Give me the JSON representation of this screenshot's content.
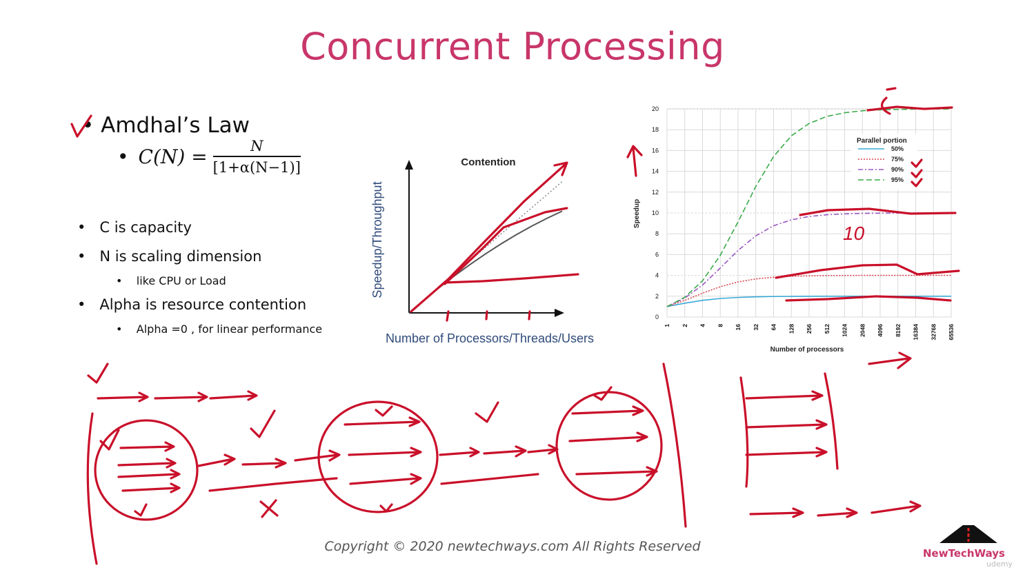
{
  "slide": {
    "title": "Concurrent Processing",
    "bullet_main": "Amdhal’s Law",
    "formula": {
      "lhs": "C(N) =",
      "numerator": "N",
      "denominator": "[1+α(N−1)]"
    },
    "list": [
      {
        "level": 1,
        "text": "C is capacity"
      },
      {
        "level": 1,
        "text": "N is scaling dimension"
      },
      {
        "level": 2,
        "text": "like CPU or Load"
      },
      {
        "level": 1,
        "text": "Alpha is resource contention"
      },
      {
        "level": 2,
        "text": "Alpha =0 , for linear performance"
      }
    ],
    "footer": "Copyright © 2020 newtechways.com All Rights Reserved",
    "logo_text": "NewTechWays",
    "platform": "udemy",
    "handwritten": {
      "ten": "10"
    }
  },
  "colors": {
    "title": "#c8366a",
    "ink": "#c9102a",
    "axis_label": "#2f4a7a"
  },
  "chart_data": [
    {
      "type": "line",
      "title": "Contention",
      "xlabel": "Number of Processors/Threads/Users",
      "ylabel": "Speedup/Throughput",
      "series": [],
      "x": [
        0,
        1,
        2,
        3,
        4,
        5,
        6,
        7,
        8,
        9,
        10
      ],
      "curves": {
        "linear": [
          0,
          1,
          2,
          3,
          4,
          5,
          6,
          7,
          8,
          9,
          10
        ],
        "contention": [
          0,
          1,
          1.95,
          2.85,
          3.7,
          4.5,
          5.25,
          5.95,
          6.6,
          7.2,
          7.75
        ]
      }
    },
    {
      "type": "line",
      "xlabel": "Number of processors",
      "ylabel": "Speedup",
      "legend_title": "Parallel portion",
      "legend_position": "top-right",
      "x_scale": "log2",
      "categories": [
        "1",
        "2",
        "4",
        "8",
        "16",
        "32",
        "64",
        "128",
        "256",
        "512",
        "1024",
        "2048",
        "4096",
        "8192",
        "16384",
        "32768",
        "65536"
      ],
      "ylim": [
        0,
        20
      ],
      "yticks": [
        0,
        2,
        4,
        6,
        8,
        10,
        12,
        14,
        16,
        18,
        20
      ],
      "grid": true,
      "series": [
        {
          "name": "50%",
          "color": "#38a8d6",
          "dash": "solid",
          "values": [
            1,
            1.33,
            1.6,
            1.78,
            1.88,
            1.94,
            1.97,
            1.98,
            1.99,
            2,
            2,
            2,
            2,
            2,
            2,
            2,
            2
          ]
        },
        {
          "name": "75%",
          "color": "#d9434f",
          "dash": "dotted",
          "values": [
            1,
            1.6,
            2.29,
            2.91,
            3.37,
            3.66,
            3.82,
            3.91,
            3.95,
            3.98,
            3.99,
            4,
            4,
            4,
            4,
            4,
            4
          ]
        },
        {
          "name": "90%",
          "color": "#9a55c2",
          "dash": "dashdot",
          "values": [
            1,
            1.82,
            3.08,
            4.71,
            6.4,
            7.8,
            8.77,
            9.34,
            9.66,
            9.83,
            9.91,
            9.96,
            9.98,
            9.99,
            10,
            10,
            10
          ]
        },
        {
          "name": "95%",
          "color": "#3aaa4a",
          "dash": "dashed",
          "values": [
            1,
            1.9,
            3.48,
            5.93,
            9.14,
            12.55,
            15.42,
            17.41,
            18.6,
            19.28,
            19.63,
            19.82,
            19.91,
            19.95,
            19.98,
            19.99,
            19.99
          ]
        }
      ]
    }
  ]
}
